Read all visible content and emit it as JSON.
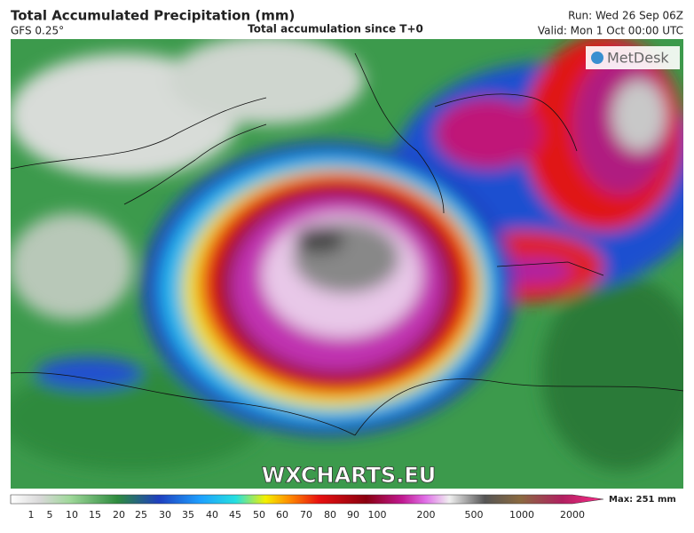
{
  "header": {
    "title": "Total Accumulated Precipitation (mm)",
    "model": "GFS 0.25°",
    "subtitle": "Total accumulation since T+0",
    "run": "Run: Wed 26 Sep 06Z",
    "valid": "Valid: Mon 1 Oct 00:00 UTC"
  },
  "logo": "MetDesk",
  "watermark": "WXCHARTS.EU",
  "legend": {
    "labels": [
      1,
      5,
      10,
      15,
      20,
      25,
      30,
      35,
      40,
      45,
      50,
      60,
      70,
      80,
      90,
      100,
      200,
      500,
      1000,
      2000
    ],
    "max": "Max: 251 mm"
  }
}
